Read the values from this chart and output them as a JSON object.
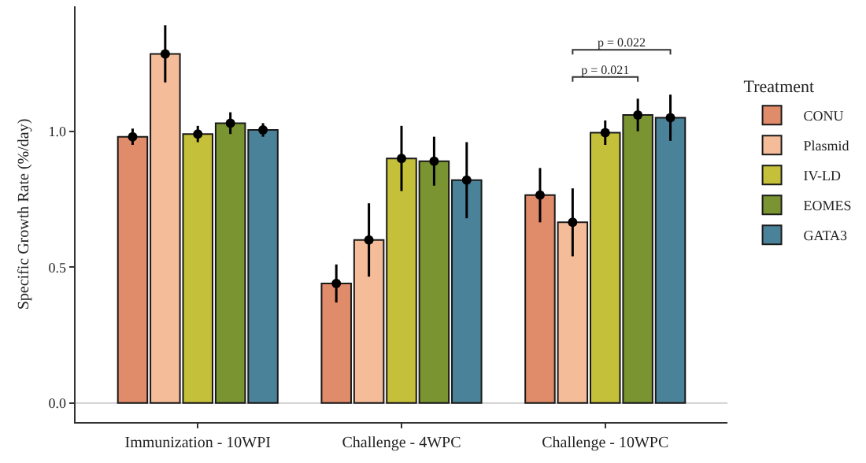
{
  "chart_data": {
    "type": "bar",
    "ylabel": "Specific Growth Rate (%/day)",
    "legend_title": "Treatment",
    "categories": [
      "Immunization - 10WPI",
      "Challenge - 4WPC",
      "Challenge - 10WPC"
    ],
    "series": [
      {
        "name": "CONU",
        "color": "#e08b6a",
        "values": [
          0.98,
          0.44,
          0.765
        ],
        "errors": [
          0.03,
          0.07,
          0.1
        ]
      },
      {
        "name": "Plasmid",
        "color": "#f4bc98",
        "values": [
          1.285,
          0.6,
          0.665
        ],
        "errors": [
          0.105,
          0.135,
          0.125
        ]
      },
      {
        "name": "IV-LD",
        "color": "#c5c03a",
        "values": [
          0.99,
          0.9,
          0.995
        ],
        "errors": [
          0.03,
          0.12,
          0.045
        ]
      },
      {
        "name": "EOMES",
        "color": "#7a9431",
        "values": [
          1.03,
          0.89,
          1.06
        ],
        "errors": [
          0.04,
          0.09,
          0.06
        ]
      },
      {
        "name": "GATA3",
        "color": "#4a8299",
        "values": [
          1.005,
          0.82,
          1.05
        ],
        "errors": [
          0.025,
          0.14,
          0.085
        ]
      }
    ],
    "ylim": [
      -0.07,
      1.46
    ],
    "yticks": [
      {
        "value": 0,
        "label": "0.0"
      },
      0.5,
      {
        "value": 1,
        "label": "1.0"
      }
    ],
    "marker": "circle",
    "grid": false,
    "legend": "right",
    "ref_lines": [
      {
        "axis": "y",
        "value": 0,
        "color": "#cccccc"
      }
    ],
    "annotations": [
      "p = 0.021",
      "p = 0.022"
    ]
  }
}
